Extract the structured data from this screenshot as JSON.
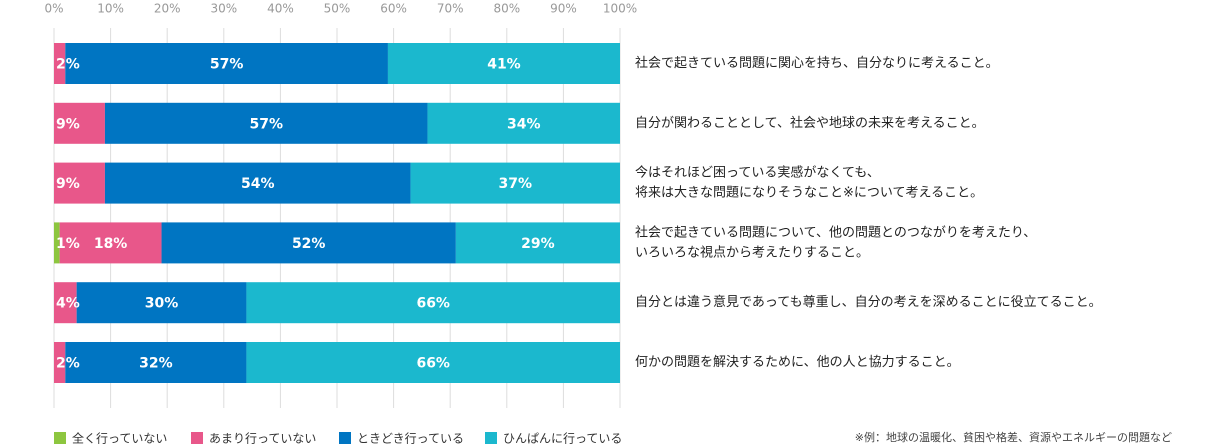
{
  "chart_data": {
    "type": "stacked_barh",
    "categories": [
      [
        "社会で起きている問題に関心を持ち、自分なりに考えること。"
      ],
      [
        "自分が関わることとして、社会や地球の未来を考えること。"
      ],
      [
        "今はそれほど困っている実感がなくても、",
        "将来は大きな問題になりそうなこと※について考えること。"
      ],
      [
        "社会で起きている問題について、他の問題とのつながりを考えたり、",
        "いろいろな視点から考えたりすること。"
      ],
      [
        "自分とは違う意見であっても尊重し、自分の考えを深めることに役立てること。"
      ],
      [
        "何かの問題を解決するために、他の人と協力すること。"
      ]
    ],
    "series": [
      {
        "name": "全く行っていない",
        "color": "#8dc63f",
        "values": [
          0,
          0,
          0,
          1,
          0,
          0
        ],
        "value_labels": [
          null,
          null,
          null,
          "1%",
          null,
          null
        ]
      },
      {
        "name": "あまり行っていない",
        "color": "#e8578a",
        "values": [
          2,
          9,
          9,
          18,
          4,
          2
        ],
        "value_labels": [
          "2%",
          "9%",
          "9%",
          "18%",
          "4%",
          "2%"
        ]
      },
      {
        "name": "ときどき行っている",
        "color": "#0075c2",
        "values": [
          57,
          57,
          54,
          52,
          30,
          32
        ],
        "value_labels": [
          "57%",
          "57%",
          "54%",
          "52%",
          "30%",
          "32%"
        ]
      },
      {
        "name": "ひんぱんに行っている",
        "color": "#1bb8ce",
        "values": [
          41,
          34,
          37,
          29,
          66,
          66
        ],
        "value_labels": [
          "41%",
          "34%",
          "37%",
          "29%",
          "66%",
          "66%"
        ]
      }
    ],
    "xlim": [
      0,
      100
    ],
    "xticks": [
      {
        "value": 0,
        "label": "0%"
      },
      {
        "value": 10,
        "label": "10%"
      },
      {
        "value": 20,
        "label": "20%"
      },
      {
        "value": 30,
        "label": "30%"
      },
      {
        "value": 40,
        "label": "40%"
      },
      {
        "value": 50,
        "label": "50%"
      },
      {
        "value": 60,
        "label": "60%"
      },
      {
        "value": 70,
        "label": "70%"
      },
      {
        "value": 80,
        "label": "80%"
      },
      {
        "value": 90,
        "label": "90%"
      },
      {
        "value": 100,
        "label": "100%"
      }
    ],
    "grid": true,
    "annotation": "※例：地球の温暖化、貧困や格差、資源やエネルギーの問題など"
  }
}
